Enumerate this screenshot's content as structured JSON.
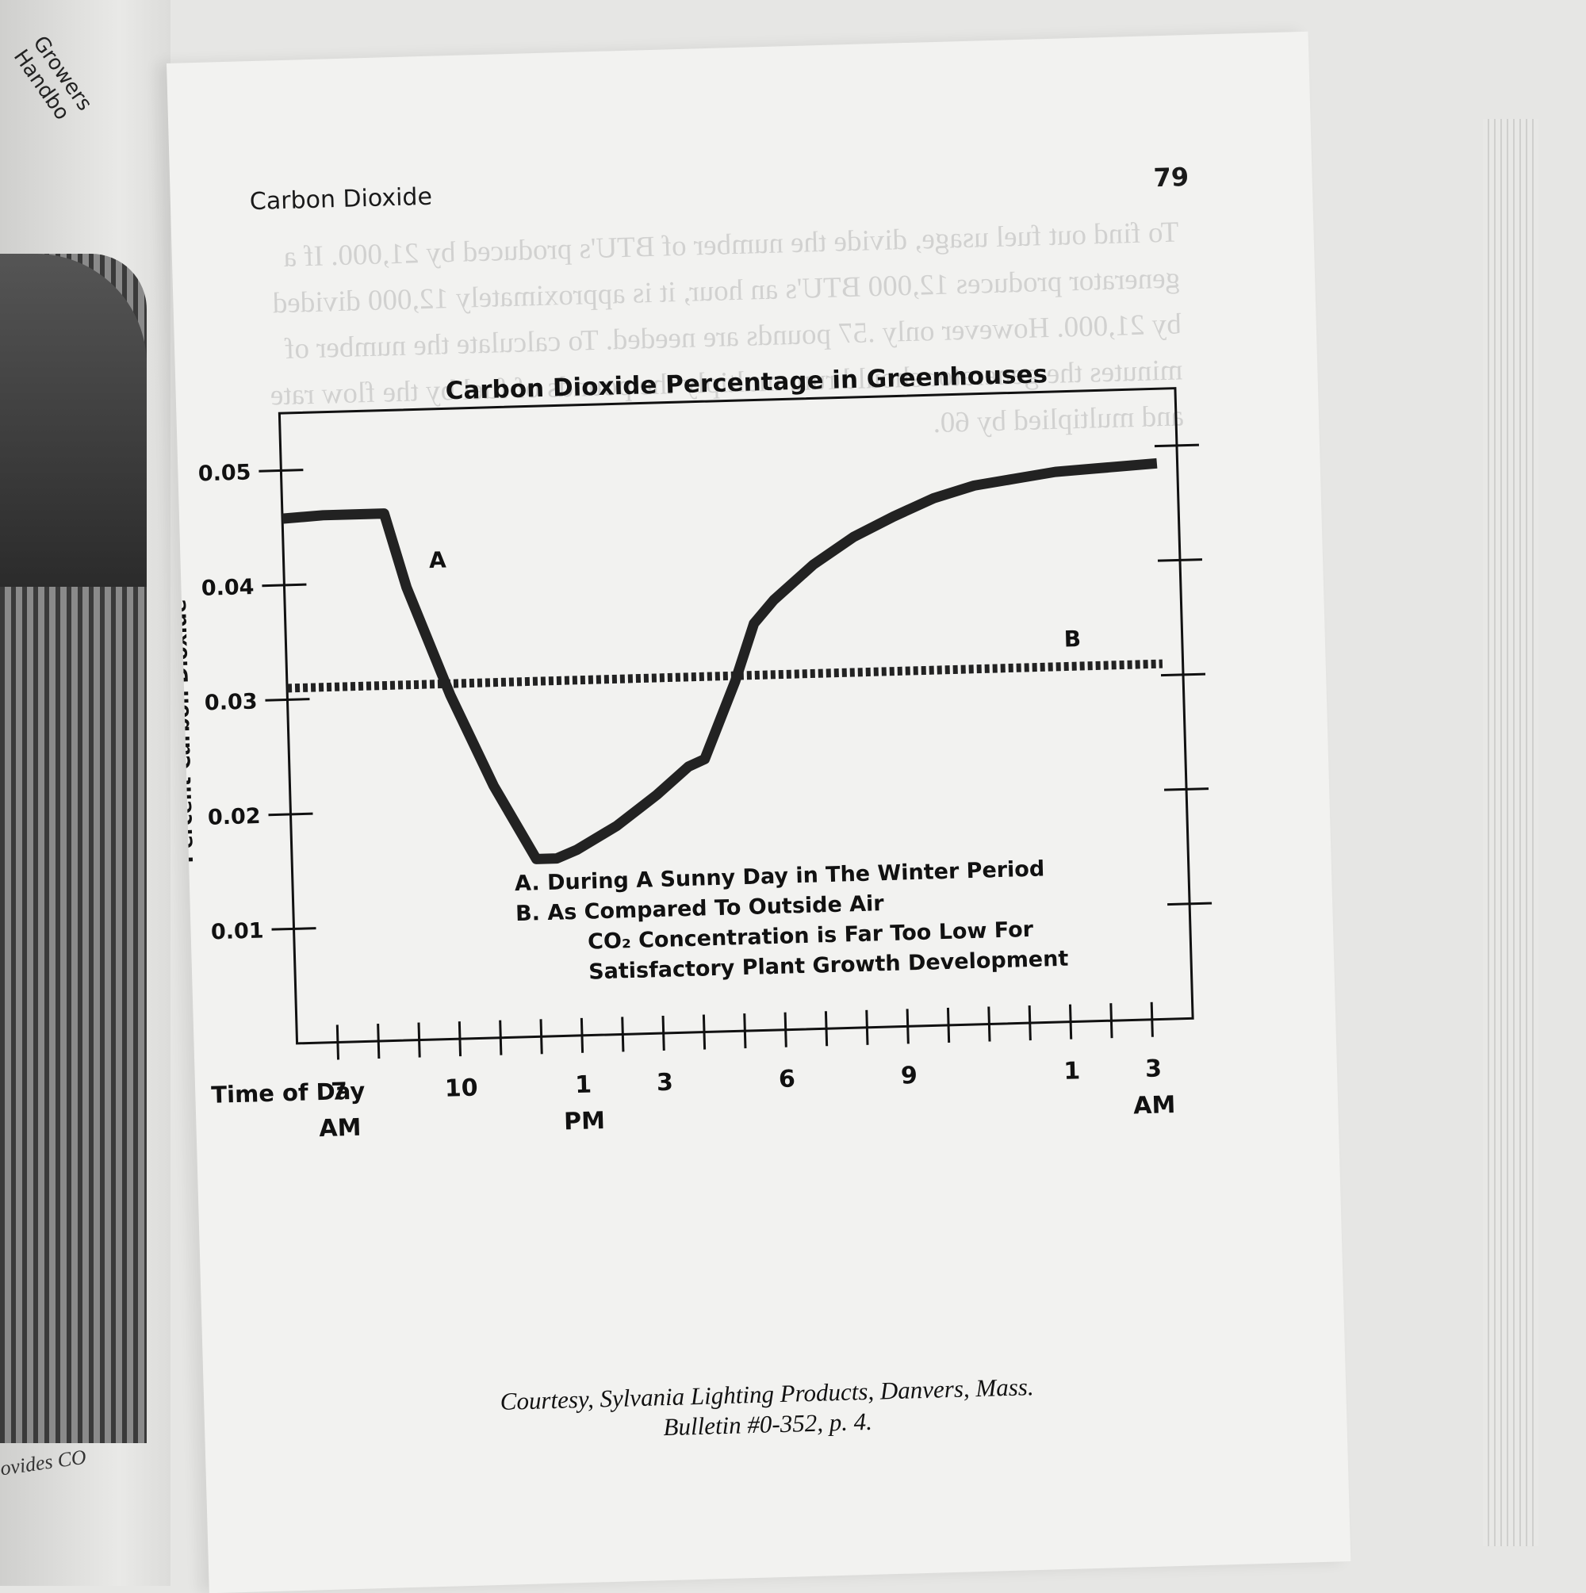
{
  "left_page": {
    "running_head": "Growers Handbo",
    "caption": "ovides CO"
  },
  "page": {
    "section_title": "Carbon Dioxide",
    "page_number": "79"
  },
  "chart_data": {
    "type": "line",
    "title": "Carbon Dioxide Percentage in Greenhouses",
    "ylabel": "Percent Carbon Dioxide",
    "xlabel": "Time of Day",
    "ylim": [
      0,
      0.055
    ],
    "y_ticks": [
      0.01,
      0.02,
      0.03,
      0.04,
      0.05
    ],
    "y_tick_labels": [
      "0.01",
      "0.02",
      "0.03",
      "0.04",
      "0.05"
    ],
    "x_range": [
      6,
      28
    ],
    "x_ticks": [
      7,
      8,
      9,
      10,
      11,
      12,
      13,
      14,
      15,
      16,
      17,
      18,
      19,
      20,
      21,
      22,
      23,
      24,
      25,
      26,
      27
    ],
    "x_tick_labels": [
      {
        "x": 7,
        "label": "7",
        "sublabel": "AM"
      },
      {
        "x": 10,
        "label": "10",
        "sublabel": ""
      },
      {
        "x": 13,
        "label": "1",
        "sublabel": "PM"
      },
      {
        "x": 15,
        "label": "3",
        "sublabel": ""
      },
      {
        "x": 18,
        "label": "6",
        "sublabel": ""
      },
      {
        "x": 21,
        "label": "9",
        "sublabel": ""
      },
      {
        "x": 25,
        "label": "1",
        "sublabel": ""
      },
      {
        "x": 27,
        "label": "3",
        "sublabel": "AM"
      }
    ],
    "series": [
      {
        "name": "A",
        "style": "solid",
        "color": "#222222",
        "x": [
          6,
          7,
          8,
          8.5,
          9,
          10,
          11,
          12,
          12.5,
          13,
          14,
          15,
          15.8,
          16.2,
          17,
          17.5,
          18,
          19,
          20,
          21,
          22,
          23,
          24,
          25,
          26,
          27.5
        ],
        "y": [
          0.0458,
          0.046,
          0.046,
          0.046,
          0.0395,
          0.03,
          0.022,
          0.0155,
          0.0155,
          0.0162,
          0.0182,
          0.0208,
          0.0232,
          0.0238,
          0.0305,
          0.0355,
          0.0375,
          0.0405,
          0.0428,
          0.0445,
          0.046,
          0.047,
          0.0475,
          0.048,
          0.0482,
          0.0485
        ]
      },
      {
        "name": "B",
        "style": "dotted",
        "color": "#222222",
        "x": [
          6,
          27.5
        ],
        "y": [
          0.031,
          0.031
        ]
      }
    ],
    "legend": {
      "placement": "bottom-center",
      "lines": [
        "A. During A Sunny Day in The Winter Period",
        "B. As Compared To Outside Air",
        "CO₂ Concentration is Far Too Low For",
        "Satisfactory Plant Growth Development"
      ]
    },
    "grid": false
  },
  "credit": {
    "line1": "Courtesy, Sylvania Lighting Products, Danvers, Mass.",
    "line2": "Bulletin #0-352, p. 4."
  },
  "colors": {
    "paper": "#f2f2f0",
    "ink": "#111111",
    "background": "#e6e6e4"
  }
}
